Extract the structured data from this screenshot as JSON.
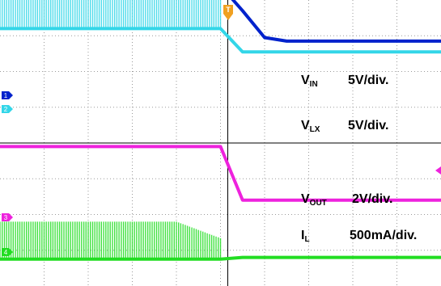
{
  "chart_data": {
    "type": "line",
    "title": "",
    "xlabel": "",
    "ylabel": "",
    "grid": true,
    "time_divisions": 10,
    "trigger_marker": "T",
    "x": [
      0,
      0.5,
      1,
      1.5,
      2,
      2.5,
      3,
      3.5,
      4,
      4.5,
      5,
      5.5,
      6,
      6.5,
      7,
      7.5,
      8,
      8.5,
      9,
      9.5,
      10
    ],
    "series": [
      {
        "name": "VIN",
        "label_main": "V",
        "label_sub": "IN",
        "scale": "5V/div.",
        "color": "#0022cc",
        "channel": "1",
        "y": [
          5.9,
          5.9,
          5.9,
          5.9,
          5.9,
          5.9,
          5.9,
          5.9,
          5.75,
          5.1,
          4.4,
          3.7,
          2.95,
          2.85,
          2.85,
          2.85,
          2.85,
          2.85,
          2.85,
          2.85,
          2.85
        ]
      },
      {
        "name": "VLX",
        "label_main": "V",
        "label_sub": "LX",
        "scale": "5V/div.",
        "color": "#33d6e8",
        "channel": "2",
        "switching": {
          "high": 5.6,
          "low": 3.2,
          "from": 0,
          "to": 5
        },
        "y": [
          3.2,
          3.2,
          3.2,
          3.2,
          3.2,
          3.2,
          3.2,
          3.2,
          3.2,
          3.2,
          3.2,
          2.55,
          2.55,
          2.55,
          2.55,
          2.55,
          2.55,
          2.55,
          2.55,
          2.55,
          2.55
        ]
      },
      {
        "name": "VOUT",
        "label_main": "V",
        "label_sub": "OUT",
        "scale": "2V/div.",
        "color": "#ee22dd",
        "channel": "3",
        "y": [
          -0.1,
          -0.1,
          -0.1,
          -0.1,
          -0.1,
          -0.1,
          -0.1,
          -0.1,
          -0.1,
          -0.1,
          -0.1,
          -1.6,
          -1.6,
          -1.6,
          -1.6,
          -1.6,
          -1.6,
          -1.6,
          -1.6,
          -1.6,
          -1.6
        ]
      },
      {
        "name": "IL",
        "label_main": "I",
        "label_sub": "L",
        "scale": "500mA/div.",
        "color": "#22dd22",
        "channel": "4",
        "switching": {
          "high": -2.2,
          "low": -3.25,
          "from": 0,
          "to": 5
        },
        "y": [
          -3.25,
          -3.25,
          -3.25,
          -3.25,
          -3.25,
          -3.25,
          -3.25,
          -3.25,
          -3.25,
          -3.25,
          -3.25,
          -3.2,
          -3.2,
          -3.2,
          -3.2,
          -3.2,
          -3.2,
          -3.2,
          -3.2,
          -3.2,
          -3.2
        ]
      }
    ]
  }
}
